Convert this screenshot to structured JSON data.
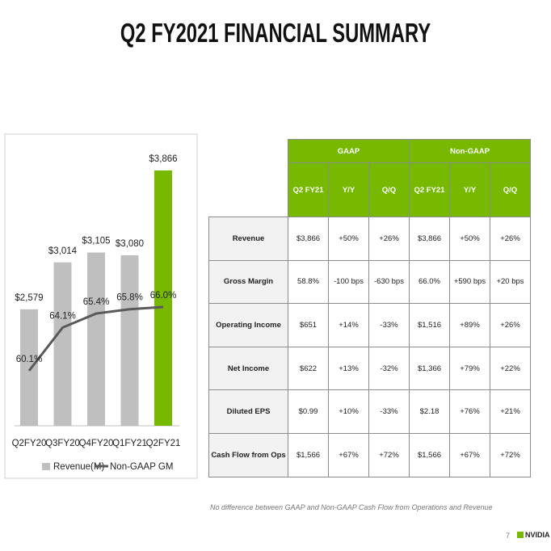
{
  "title": "Q2 FY2021 FINANCIAL SUMMARY",
  "chart_data": {
    "type": "bar",
    "categories": [
      "Q2FY20",
      "Q3FY20",
      "Q4FY20",
      "Q1FY21",
      "Q2FY21"
    ],
    "series": [
      {
        "name": "Revenue(M)",
        "type": "bar",
        "color": "#bfbfbf",
        "colors": [
          "#bfbfbf",
          "#bfbfbf",
          "#bfbfbf",
          "#bfbfbf",
          "#76b900"
        ],
        "values": [
          2579,
          3014,
          3105,
          3080,
          3866
        ],
        "value_labels": [
          "$2,579",
          "$3,014",
          "$3,105",
          "$3,080",
          "$3,866"
        ]
      },
      {
        "name": "Non-GAAP GM",
        "type": "line",
        "axis": "y2",
        "color": "#595959",
        "values": [
          60.1,
          64.1,
          65.4,
          65.8,
          66.0
        ],
        "value_labels": [
          "60.1%",
          "64.1%",
          "65.4%",
          "65.8%",
          "66.0%"
        ]
      }
    ],
    "ylim": [
      1500,
      4000
    ],
    "y2lim": [
      55,
      80
    ],
    "legend": "bottom"
  },
  "table": {
    "groups": [
      "GAAP",
      "Non-GAAP"
    ],
    "columns": [
      "Q2 FY21",
      "Y/Y",
      "Q/Q",
      "Q2 FY21",
      "Y/Y",
      "Q/Q"
    ],
    "rows": [
      {
        "label": "Revenue",
        "cells": [
          "$3,866",
          "+50%",
          "+26%",
          "$3,866",
          "+50%",
          "+26%"
        ]
      },
      {
        "label": "Gross Margin",
        "cells": [
          "58.8%",
          "-100 bps",
          "-630 bps",
          "66.0%",
          "+590 bps",
          "+20 bps"
        ]
      },
      {
        "label": "Operating Income",
        "cells": [
          "$651",
          "+14%",
          "-33%",
          "$1,516",
          "+89%",
          "+26%"
        ]
      },
      {
        "label": "Net Income",
        "cells": [
          "$622",
          "+13%",
          "-32%",
          "$1,366",
          "+79%",
          "+22%"
        ]
      },
      {
        "label": "Diluted EPS",
        "cells": [
          "$0.99",
          "+10%",
          "-33%",
          "$2.18",
          "+76%",
          "+21%"
        ]
      },
      {
        "label": "Cash Flow from Ops",
        "cells": [
          "$1,566",
          "+67%",
          "+72%",
          "$1,566",
          "+67%",
          "+72%"
        ]
      }
    ]
  },
  "footnote": "No difference between GAAP and Non-GAAP Cash Flow from Operations and Revenue",
  "page_number": "7",
  "logo": "NVIDIA"
}
